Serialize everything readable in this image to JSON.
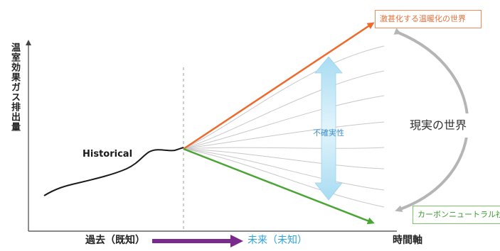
{
  "diagram": {
    "y_axis_label": "温室効果ガス排出量",
    "x_axis_label": "時間軸",
    "historical_label": "Historical",
    "uncertainty_label": "不確実性",
    "reality_label": "現実の世界",
    "top_scenario_label": "激甚化する温暖化の世界",
    "bottom_scenario_label": "カーボンニュートラル社",
    "past_label": "過去（既知）",
    "future_label": "未来（未知）",
    "colors": {
      "high_scenario": "#ee6a2c",
      "low_scenario": "#4aa535",
      "uncertainty_arrow": "#bfe6f5",
      "past_arrow": "#7a2a8c",
      "reality_arc": "#b5b5b5",
      "historical_curve": "#1a1a1a"
    }
  }
}
